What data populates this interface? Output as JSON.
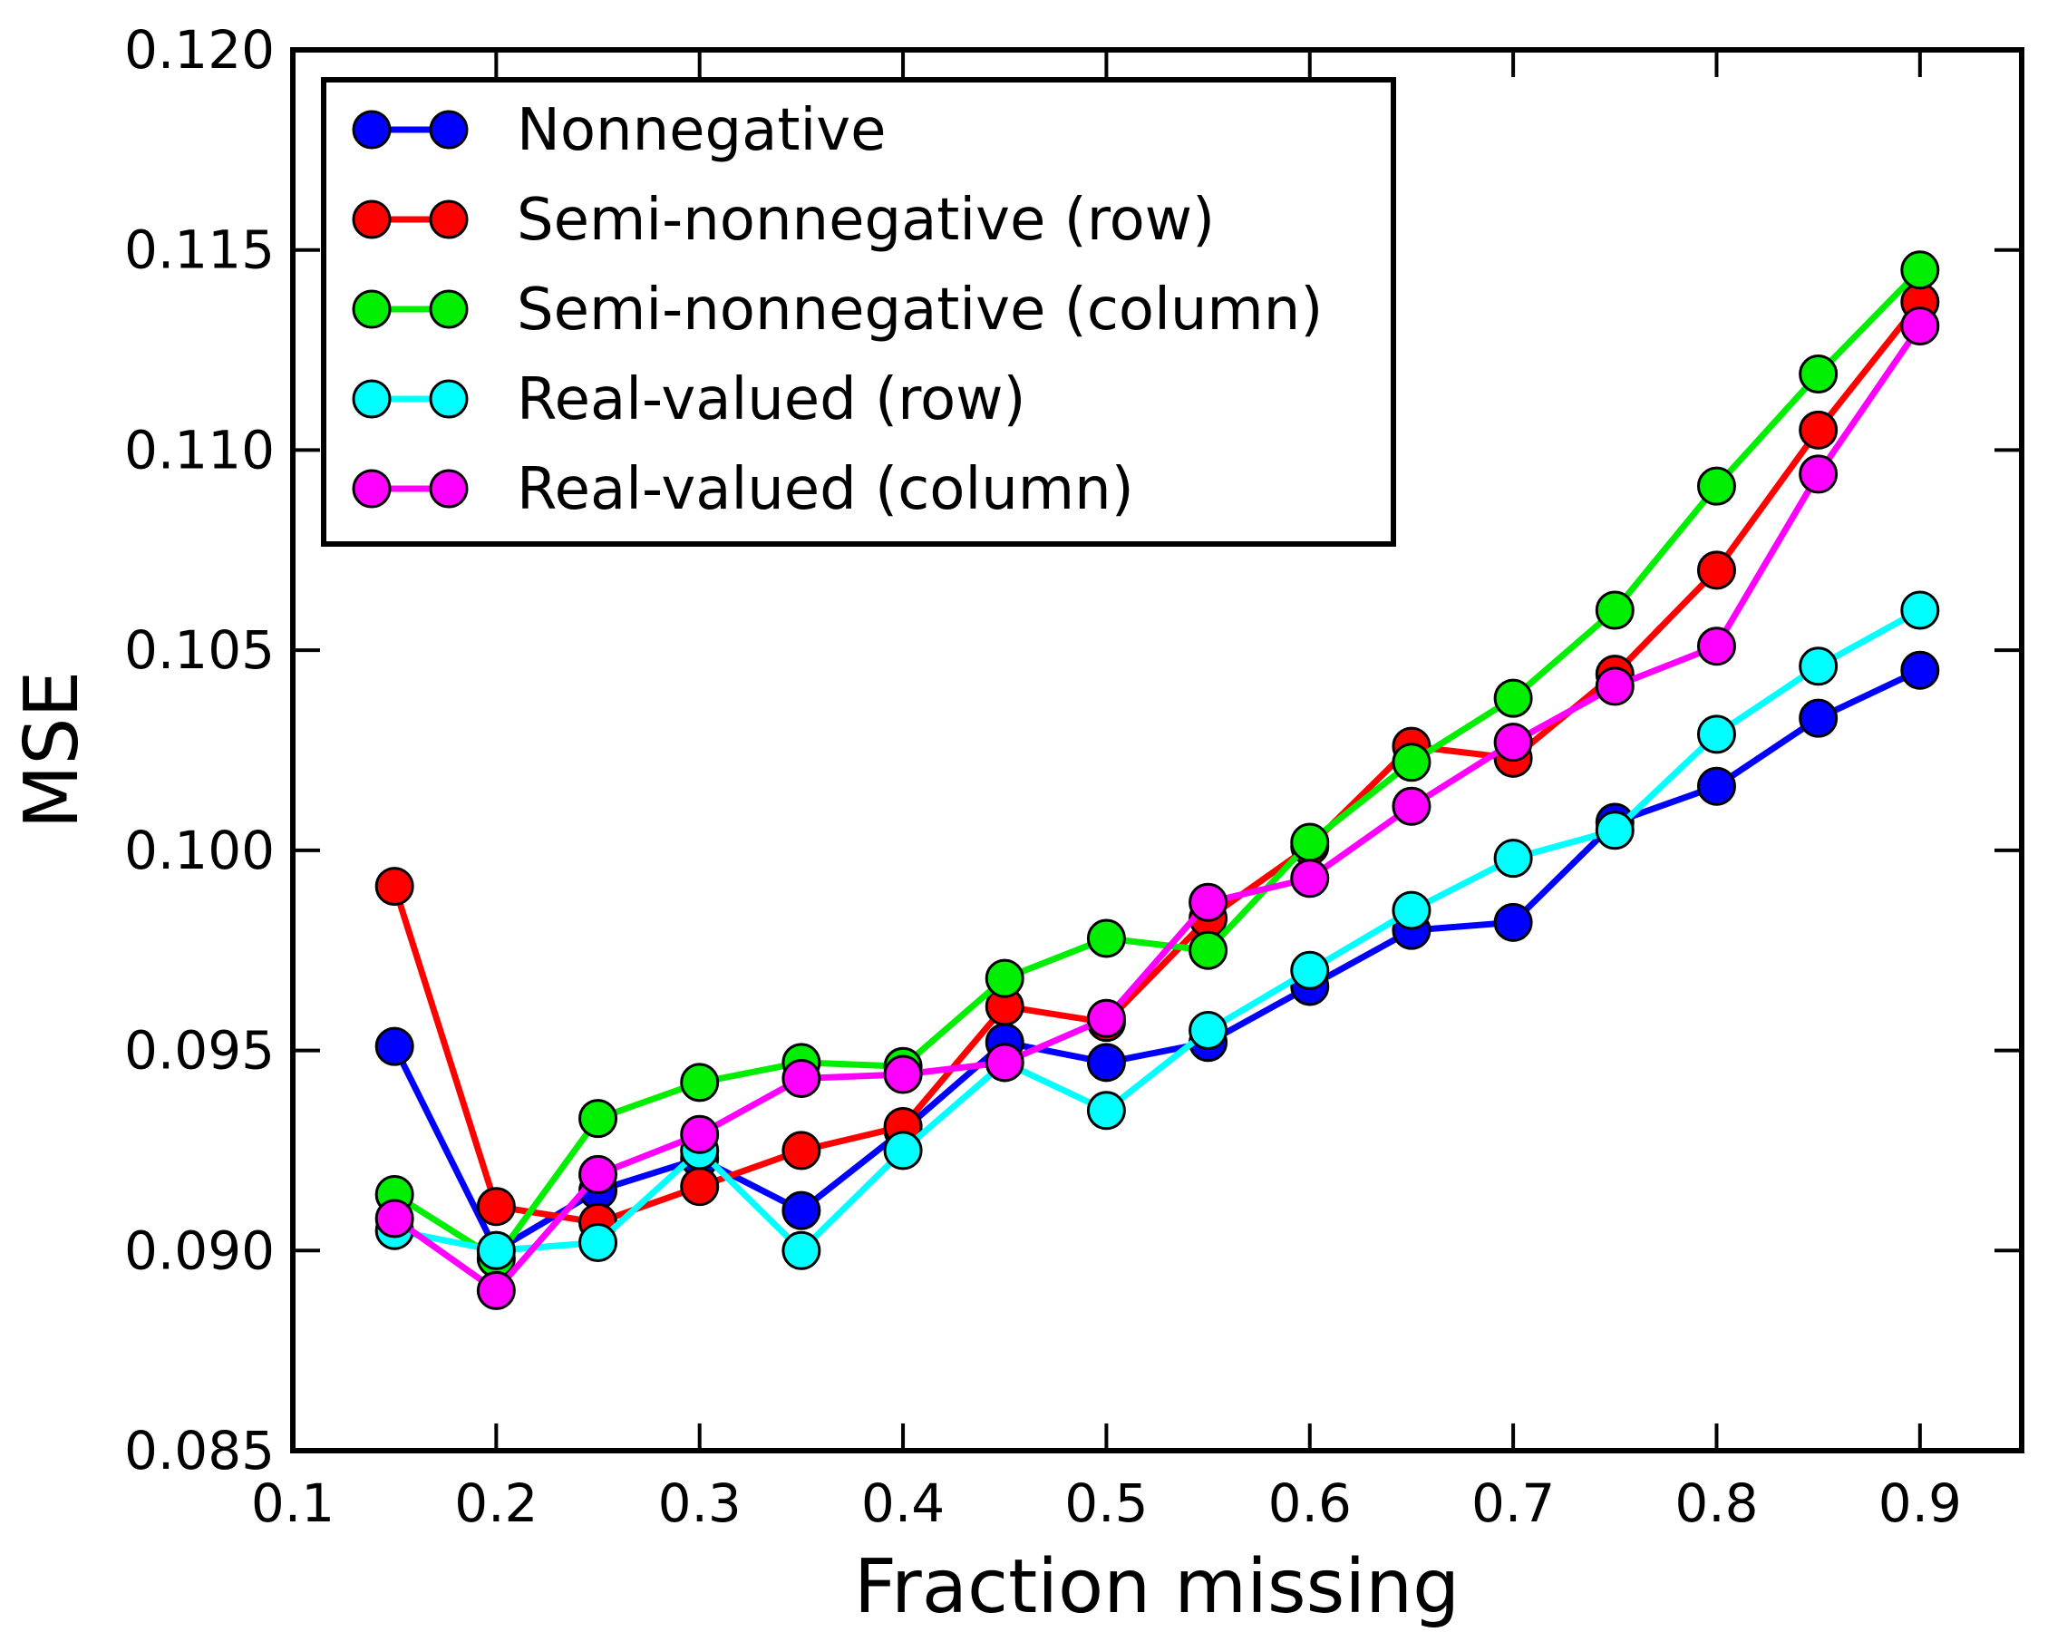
{
  "chart_data": {
    "type": "line",
    "title": "",
    "xlabel": "Fraction missing",
    "ylabel": "MSE",
    "xlim": [
      0.1,
      0.95
    ],
    "ylim": [
      0.085,
      0.12
    ],
    "xticks": [
      0.1,
      0.2,
      0.3,
      0.4,
      0.5,
      0.6,
      0.7,
      0.8,
      0.9
    ],
    "xtick_labels": [
      "0.1",
      "0.2",
      "0.3",
      "0.4",
      "0.5",
      "0.6",
      "0.7",
      "0.8",
      "0.9"
    ],
    "yticks": [
      0.085,
      0.09,
      0.095,
      0.1,
      0.105,
      0.11,
      0.115,
      0.12
    ],
    "ytick_labels": [
      "0.085",
      "0.090",
      "0.095",
      "0.100",
      "0.105",
      "0.110",
      "0.115",
      "0.120"
    ],
    "grid": false,
    "legend_position": "top-left",
    "x": [
      0.15,
      0.2,
      0.25,
      0.3,
      0.35,
      0.4,
      0.45,
      0.5,
      0.55,
      0.6,
      0.65,
      0.7,
      0.75,
      0.8,
      0.85,
      0.9
    ],
    "series": [
      {
        "name": "Nonnegative",
        "color": "#0000ff",
        "values": [
          0.0951,
          0.09,
          0.0915,
          0.0923,
          0.091,
          0.093,
          0.0952,
          0.0947,
          0.0952,
          0.0966,
          0.098,
          0.0982,
          0.1007,
          0.1016,
          0.1033,
          0.1045
        ]
      },
      {
        "name": "Semi-nonnegative (row)",
        "color": "#ff0000",
        "values": [
          0.0991,
          0.0911,
          0.0907,
          0.0916,
          0.0925,
          0.0931,
          0.0961,
          0.0957,
          0.0983,
          0.1001,
          0.1026,
          0.1023,
          0.1044,
          0.107,
          0.1105,
          0.1137
        ]
      },
      {
        "name": "Semi-nonnegative (column)",
        "color": "#00ee00",
        "values": [
          0.0914,
          0.0898,
          0.0933,
          0.0942,
          0.0947,
          0.0946,
          0.0968,
          0.0978,
          0.0975,
          0.1002,
          0.1022,
          0.1038,
          0.106,
          0.1091,
          0.1119,
          0.1145
        ]
      },
      {
        "name": "Real-valued (row)",
        "color": "#00ffff",
        "values": [
          0.0905,
          0.09,
          0.0902,
          0.0925,
          0.09,
          0.0925,
          0.0947,
          0.0935,
          0.0955,
          0.097,
          0.0985,
          0.0998,
          0.1005,
          0.1029,
          0.1046,
          0.106
        ]
      },
      {
        "name": "Real-valued (column)",
        "color": "#ff00ff",
        "values": [
          0.0908,
          0.089,
          0.0919,
          0.0929,
          0.0943,
          0.0944,
          0.0947,
          0.0958,
          0.0987,
          0.0993,
          0.1011,
          0.1027,
          0.1041,
          0.1051,
          0.1094,
          0.1131
        ]
      }
    ]
  }
}
